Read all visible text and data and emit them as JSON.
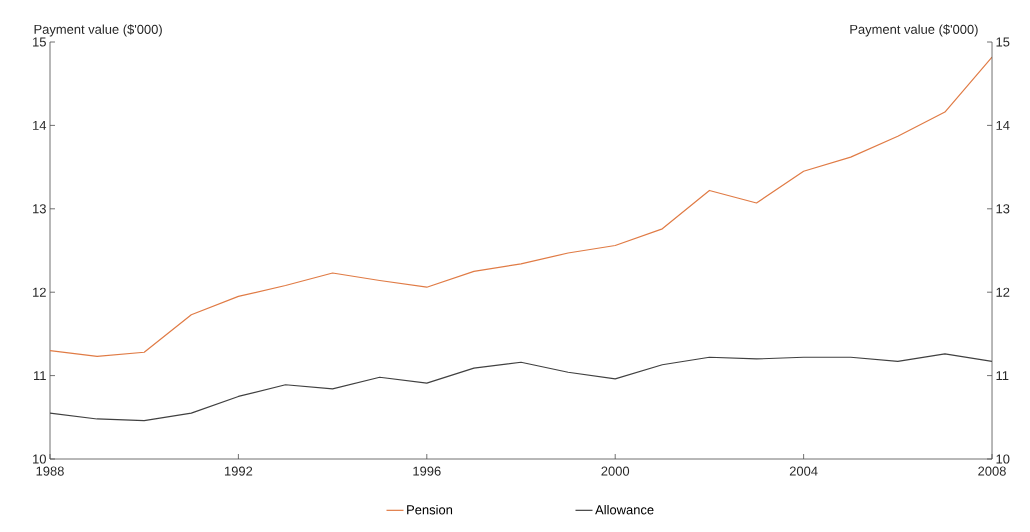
{
  "chart_data": {
    "type": "line",
    "ylabel": "Payment value ($'000)",
    "y2label": "Payment value ($'000)",
    "x": [
      1988,
      1989,
      1990,
      1991,
      1992,
      1993,
      1994,
      1995,
      1996,
      1997,
      1998,
      1999,
      2000,
      2001,
      2002,
      2003,
      2004,
      2005,
      2006,
      2007,
      2008
    ],
    "series": [
      {
        "name": "Pension",
        "color": "#e07b45",
        "values": [
          11.3,
          11.23,
          11.28,
          11.73,
          11.95,
          12.08,
          12.23,
          12.14,
          12.06,
          12.25,
          12.34,
          12.47,
          12.56,
          12.76,
          13.22,
          13.07,
          13.45,
          13.62,
          13.87,
          14.16,
          14.82
        ]
      },
      {
        "name": "Allowance",
        "color": "#404040",
        "values": [
          10.55,
          10.48,
          10.46,
          10.55,
          10.75,
          10.89,
          10.84,
          10.98,
          10.91,
          11.09,
          11.16,
          11.04,
          10.96,
          11.13,
          11.22,
          11.2,
          11.22,
          11.22,
          11.17,
          11.26,
          11.17
        ]
      }
    ],
    "xlim": [
      1988,
      2008
    ],
    "xticks": [
      1988,
      1992,
      1996,
      2000,
      2004,
      2008
    ],
    "ylim": [
      10,
      15
    ],
    "yticks": [
      10,
      11,
      12,
      13,
      14,
      15
    ],
    "y2lim": [
      10,
      15
    ],
    "y2ticks": [
      10,
      11,
      12,
      13,
      14,
      15
    ],
    "grid": false,
    "legend": "bottom",
    "line_style": "solid",
    "marker": "none"
  }
}
